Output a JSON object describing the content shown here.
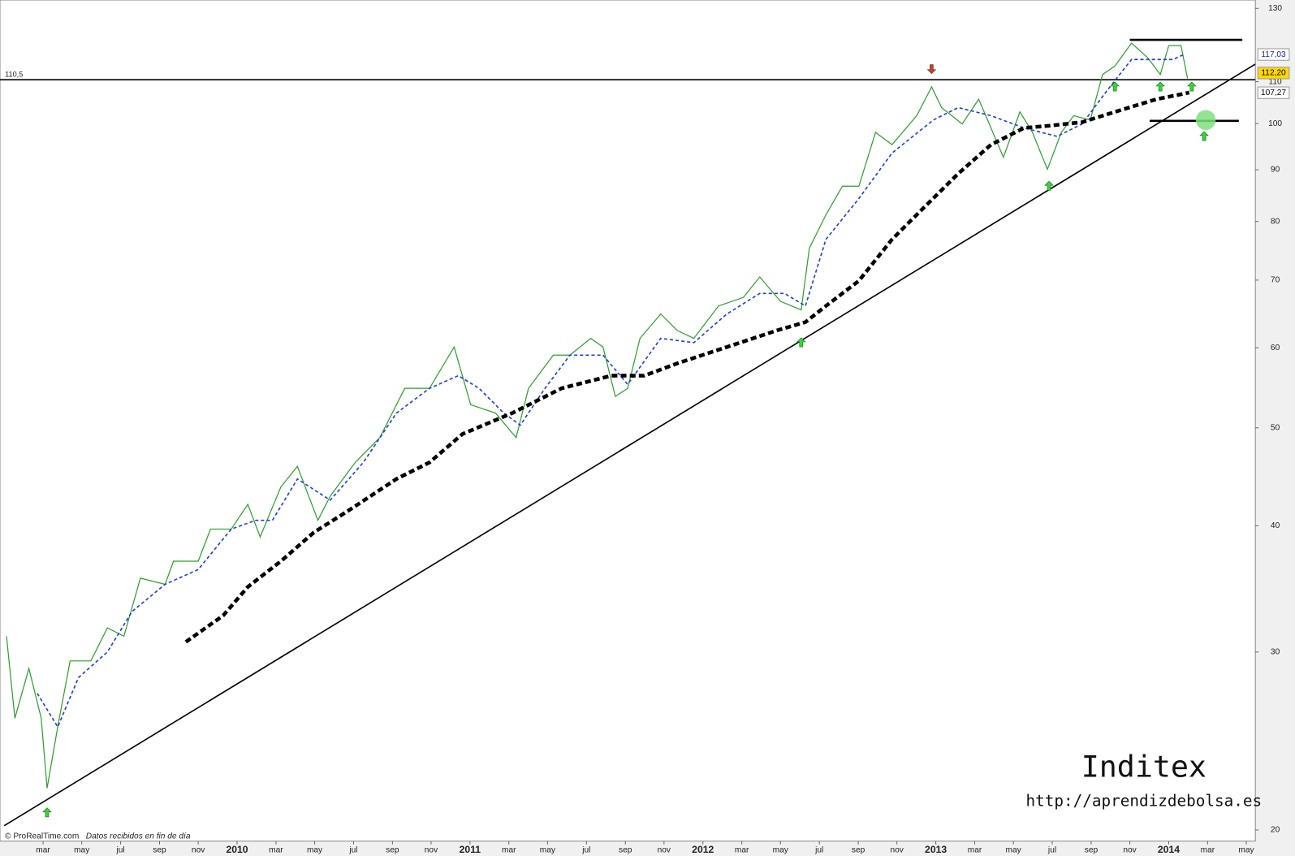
{
  "chart_data": {
    "type": "line",
    "log_y": true,
    "grid": false,
    "xlim": [
      2008.982,
      2014.372
    ],
    "ylim": [
      19.5,
      132.5
    ],
    "yticks": [
      20,
      30,
      40,
      50,
      60,
      70,
      80,
      90,
      100,
      110,
      130
    ],
    "xticks": [
      {
        "value": 2009.167,
        "label": "mar"
      },
      {
        "value": 2009.333,
        "label": "may"
      },
      {
        "value": 2009.5,
        "label": "jul"
      },
      {
        "value": 2009.667,
        "label": "sep"
      },
      {
        "value": 2009.833,
        "label": "nov"
      },
      2010,
      {
        "value": 2010.167,
        "label": "mar"
      },
      {
        "value": 2010.333,
        "label": "may"
      },
      {
        "value": 2010.5,
        "label": "jul"
      },
      {
        "value": 2010.667,
        "label": "sep"
      },
      {
        "value": 2010.833,
        "label": "nov"
      },
      2011,
      {
        "value": 2011.167,
        "label": "mar"
      },
      {
        "value": 2011.333,
        "label": "may"
      },
      {
        "value": 2011.5,
        "label": "jul"
      },
      {
        "value": 2011.667,
        "label": "sep"
      },
      {
        "value": 2011.833,
        "label": "nov"
      },
      2012,
      {
        "value": 2012.167,
        "label": "mar"
      },
      {
        "value": 2012.333,
        "label": "may"
      },
      {
        "value": 2012.5,
        "label": "jul"
      },
      {
        "value": 2012.667,
        "label": "sep"
      },
      {
        "value": 2012.833,
        "label": "nov"
      },
      2013,
      {
        "value": 2013.167,
        "label": "mar"
      },
      {
        "value": 2013.333,
        "label": "may"
      },
      {
        "value": 2013.5,
        "label": "jul"
      },
      {
        "value": 2013.667,
        "label": "sep"
      },
      {
        "value": 2013.833,
        "label": "nov"
      },
      2014,
      {
        "value": 2014.167,
        "label": "mar"
      },
      {
        "value": 2014.333,
        "label": "may"
      }
    ],
    "series": [
      {
        "color": "#2e9e2e",
        "style": "solid",
        "x": [
          2009.01,
          2009.046,
          2009.106,
          2009.159,
          2009.184,
          2009.23,
          2009.283,
          2009.372,
          2009.443,
          2009.514,
          2009.585,
          2009.691,
          2009.727,
          2009.833,
          2009.886,
          2009.975,
          2010.046,
          2010.099,
          2010.188,
          2010.259,
          2010.347,
          2010.4,
          2010.507,
          2010.613,
          2010.72,
          2010.826,
          2010.932,
          2011.003,
          2011.11,
          2011.198,
          2011.251,
          2011.358,
          2011.429,
          2011.518,
          2011.571,
          2011.624,
          2011.677,
          2011.73,
          2011.819,
          2011.89,
          2011.961,
          2012.067,
          2012.174,
          2012.244,
          2012.333,
          2012.422,
          2012.457,
          2012.528,
          2012.599,
          2012.67,
          2012.741,
          2012.812,
          2012.918,
          2012.982,
          2013.025,
          2013.113,
          2013.184,
          2013.237,
          2013.29,
          2013.361,
          2013.415,
          2013.479,
          2013.539,
          2013.592,
          2013.663,
          2013.716,
          2013.769,
          2013.84,
          2013.911,
          2013.964,
          2014.0,
          2014.053,
          2014.081
        ],
        "values": [
          31.1,
          25.8,
          28.9,
          25.8,
          22.0,
          25.3,
          29.4,
          29.4,
          31.7,
          31.1,
          35.5,
          35.0,
          36.9,
          36.9,
          39.7,
          39.7,
          42.0,
          39.0,
          43.7,
          45.8,
          40.5,
          42.8,
          46.2,
          48.9,
          54.7,
          54.7,
          60.1,
          52.7,
          51.7,
          48.9,
          54.7,
          59.0,
          59.0,
          61.3,
          60.1,
          53.7,
          54.7,
          61.3,
          64.8,
          62.4,
          61.3,
          66.0,
          67.3,
          70.5,
          66.7,
          65.4,
          75.3,
          81.2,
          86.7,
          86.7,
          98.0,
          95.3,
          101.8,
          108.7,
          103.7,
          99.9,
          105.7,
          99.0,
          92.6,
          102.7,
          98.0,
          90.1,
          98.0,
          101.8,
          100.8,
          111.8,
          114.0,
          120.1,
          116.1,
          111.8,
          119.4,
          119.4,
          110.8
        ]
      },
      {
        "color": "#1f3fd0",
        "style": "dashed",
        "x": [
          2009.142,
          2009.23,
          2009.319,
          2009.443,
          2009.549,
          2009.691,
          2009.833,
          2009.975,
          2010.081,
          2010.152,
          2010.259,
          2010.4,
          2010.542,
          2010.684,
          2010.826,
          2010.95,
          2011.039,
          2011.145,
          2011.216,
          2011.322,
          2011.429,
          2011.571,
          2011.677,
          2011.819,
          2011.961,
          2012.103,
          2012.244,
          2012.351,
          2012.44,
          2012.528,
          2012.67,
          2012.812,
          2012.989,
          2013.096,
          2013.237,
          2013.379,
          2013.521,
          2013.628,
          2013.734,
          2013.84,
          2013.947,
          2014.018,
          2014.071
        ],
        "values": [
          27.3,
          25.3,
          28.3,
          30.0,
          32.9,
          35.0,
          36.2,
          39.7,
          40.5,
          40.5,
          44.5,
          42.4,
          46.2,
          51.7,
          54.7,
          56.3,
          54.7,
          51.7,
          50.3,
          54.7,
          59.0,
          59.0,
          55.2,
          61.3,
          60.7,
          64.8,
          67.9,
          67.9,
          66.0,
          76.8,
          84.3,
          93.5,
          100.8,
          103.7,
          101.8,
          99.0,
          97.1,
          99.9,
          107.7,
          115.7,
          115.7,
          115.7,
          117.2
        ]
      },
      {
        "color": "#000000",
        "style": "thick-dashed",
        "x": [
          2009.78,
          2009.94,
          2010.046,
          2010.188,
          2010.33,
          2010.471,
          2010.684,
          2010.826,
          2010.968,
          2011.181,
          2011.393,
          2011.606,
          2011.748,
          2011.89,
          2012.103,
          2012.316,
          2012.44,
          2012.528,
          2012.67,
          2012.812,
          2012.954,
          2013.096,
          2013.237,
          2013.379,
          2013.486,
          2013.628,
          2013.769,
          2013.947,
          2014.088
        ],
        "values": [
          30.7,
          32.6,
          34.8,
          36.9,
          39.4,
          41.3,
          44.5,
          46.2,
          49.3,
          51.7,
          54.7,
          56.3,
          56.3,
          57.9,
          60.1,
          62.4,
          63.6,
          66.0,
          69.9,
          76.8,
          82.8,
          89.2,
          95.3,
          99.0,
          99.5,
          100.3,
          102.7,
          105.7,
          107.3
        ]
      }
    ],
    "lines": [
      {
        "color": "#000000",
        "style": "thin",
        "x": [
          2009.0,
          2014.372
        ],
        "values": [
          20.2,
          114.5
        ]
      },
      {
        "color": "#000000",
        "style": "thick",
        "x": [
          2013.833,
          2014.316
        ],
        "values": [
          121,
          121
        ]
      },
      {
        "color": "#000000",
        "style": "thick",
        "x": [
          2013.918,
          2014.301
        ],
        "values": [
          100.6,
          100.6
        ]
      }
    ],
    "hlines": [
      {
        "value": 110.5,
        "label": "110,5",
        "color": "#000000"
      }
    ],
    "price_tags": [
      {
        "value": 117.03,
        "label": "117,03",
        "color": "#2020c0",
        "background": "#ffffff"
      },
      {
        "value": 112.2,
        "label": "112,20",
        "color": "#000000",
        "background": "#ffd800"
      },
      {
        "value": 107.27,
        "label": "107,27",
        "color": "#000000",
        "background": "#ffffff"
      }
    ],
    "markers": [
      {
        "x": 2009.184,
        "value": 20.8,
        "direction": "up",
        "color": "#3bd23b"
      },
      {
        "x": 2012.422,
        "value": 60.7,
        "direction": "up",
        "color": "#3bd23b"
      },
      {
        "x": 2013.486,
        "value": 86.7,
        "direction": "up",
        "color": "#3bd23b"
      },
      {
        "x": 2013.769,
        "value": 108.7,
        "direction": "up",
        "color": "#3bd23b"
      },
      {
        "x": 2013.964,
        "value": 108.7,
        "direction": "up",
        "color": "#3bd23b"
      },
      {
        "x": 2014.099,
        "value": 108.7,
        "direction": "up",
        "color": "#3bd23b"
      },
      {
        "x": 2014.152,
        "value": 97.1,
        "direction": "up",
        "color": "#3bd23b"
      },
      {
        "x": 2012.982,
        "value": 113.3,
        "direction": "down",
        "color": "#e03030"
      }
    ],
    "circle": {
      "x": 2014.159,
      "value": 100.8,
      "color": "#7ee07e"
    },
    "source": "© ProRealTime.com",
    "note": "Datos recibidos en fin de día",
    "title": "Inditex",
    "url": "http://aprendizdebolsa.es"
  }
}
